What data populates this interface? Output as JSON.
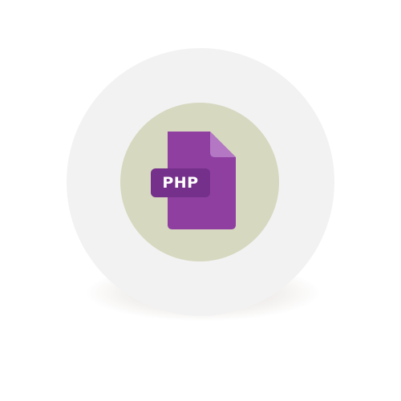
{
  "icon": {
    "name": "php-file-icon",
    "label": "PHP"
  },
  "colors": {
    "outer_circle": "#f2f2f2",
    "inner_circle": "#d7d8c0",
    "file_body": "#8e3fa0",
    "file_fold": "#b377c4",
    "label_bg": "#74308a",
    "label_text": "#ffffff"
  }
}
